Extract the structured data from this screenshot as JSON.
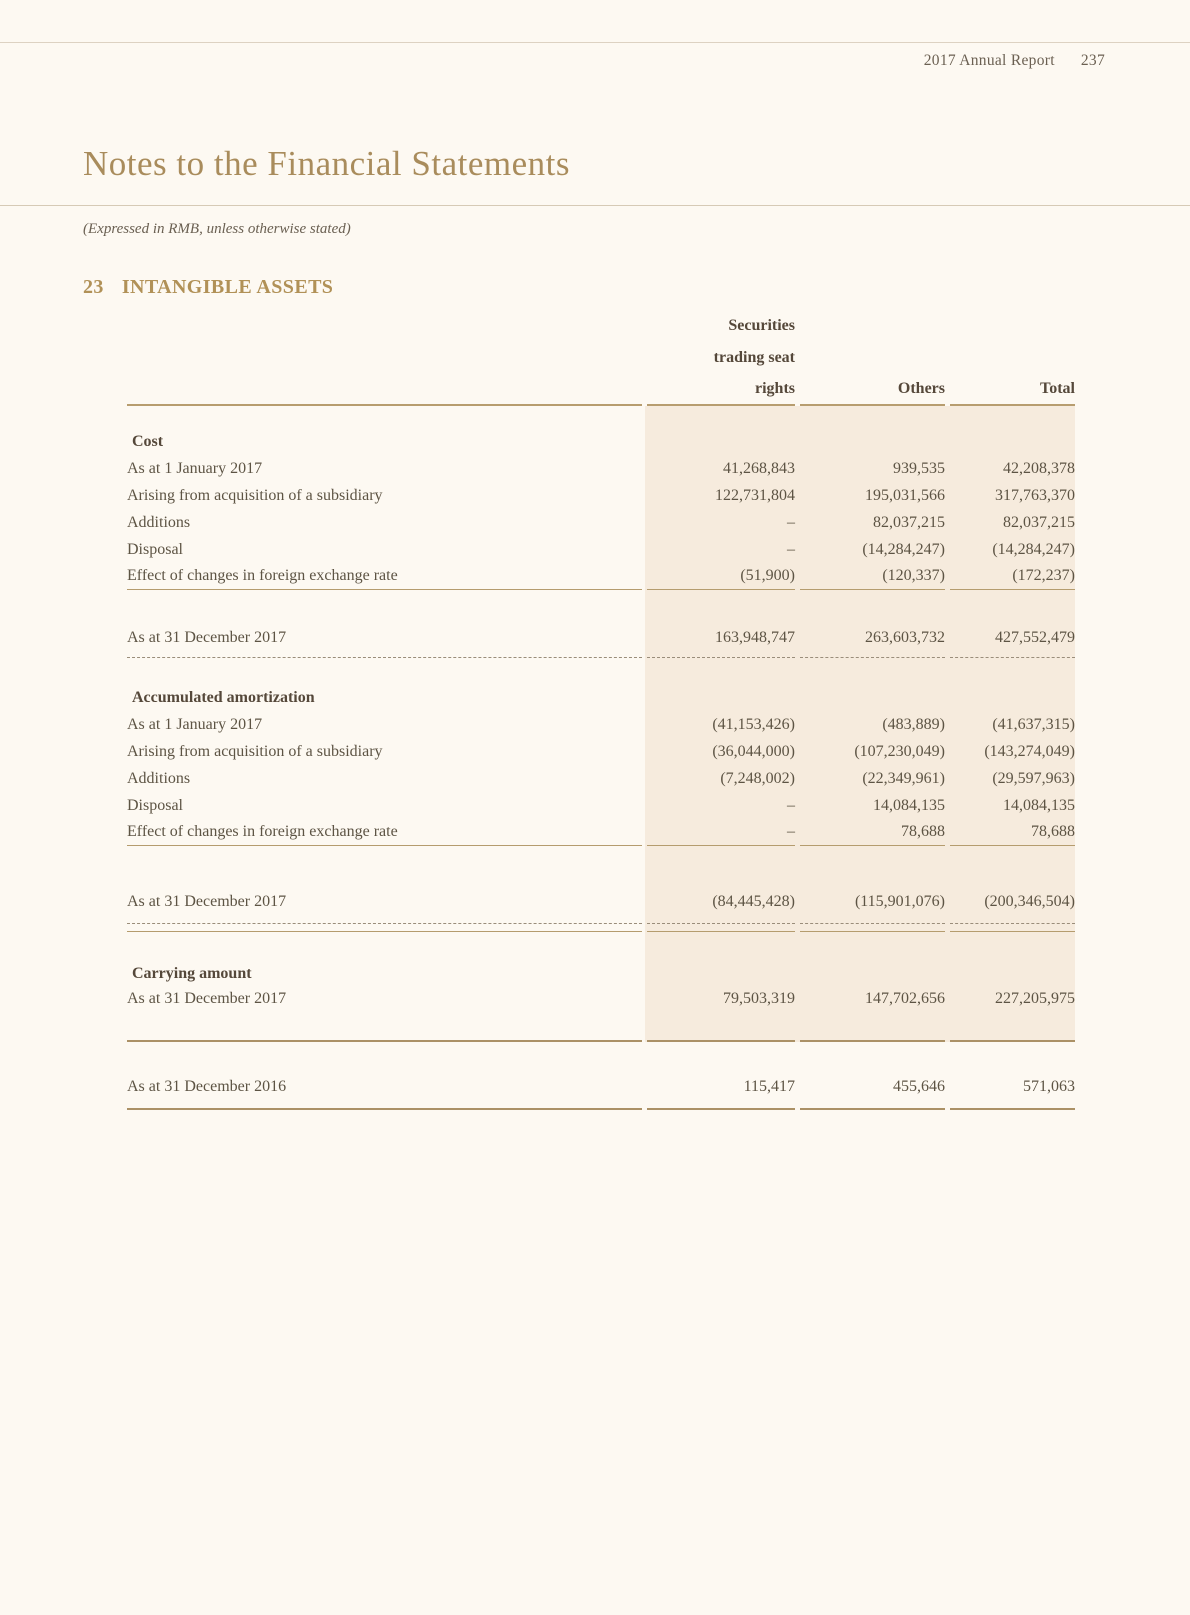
{
  "header": {
    "report_name": "2017 Annual Report",
    "page_number": "237"
  },
  "title": "Notes to the Financial Statements",
  "subtitle": "(Expressed in RMB, unless otherwise stated)",
  "section": {
    "number": "23",
    "title": "INTANGIBLE ASSETS"
  },
  "table": {
    "header": {
      "rights_lines": [
        "Securities",
        "trading seat",
        "rights"
      ],
      "others": "Others",
      "total": "Total"
    },
    "cost": {
      "label": "Cost",
      "rows": [
        {
          "label": "As at 1 January 2017",
          "rights": "41,268,843",
          "others": "939,535",
          "total": "42,208,378"
        },
        {
          "label": "Arising from acquisition of a subsidiary",
          "rights": "122,731,804",
          "others": "195,031,566",
          "total": "317,763,370"
        },
        {
          "label": "Additions",
          "rights": "–",
          "others": "82,037,215",
          "total": "82,037,215"
        },
        {
          "label": "Disposal",
          "rights": "–",
          "others": "(14,284,247)",
          "total": "(14,284,247)"
        },
        {
          "label": "Effect of changes in foreign exchange rate",
          "rights": "(51,900)",
          "others": "(120,337)",
          "total": "(172,237)"
        }
      ],
      "total_row": {
        "label": "As at 31 December 2017",
        "rights": "163,948,747",
        "others": "263,603,732",
        "total": "427,552,479"
      }
    },
    "amortization": {
      "label": "Accumulated amortization",
      "rows": [
        {
          "label": "As at 1 January 2017",
          "rights": "(41,153,426)",
          "others": "(483,889)",
          "total": "(41,637,315)"
        },
        {
          "label": "Arising from acquisition of a subsidiary",
          "rights": "(36,044,000)",
          "others": "(107,230,049)",
          "total": "(143,274,049)"
        },
        {
          "label": "Additions",
          "rights": "(7,248,002)",
          "others": "(22,349,961)",
          "total": "(29,597,963)"
        },
        {
          "label": "Disposal",
          "rights": "–",
          "others": "14,084,135",
          "total": "14,084,135"
        },
        {
          "label": "Effect of changes in foreign exchange rate",
          "rights": "–",
          "others": "78,688",
          "total": "78,688"
        }
      ],
      "total_row": {
        "label": "As at 31 December 2017",
        "rights": "(84,445,428)",
        "others": "(115,901,076)",
        "total": "(200,346,504)"
      }
    },
    "carrying": {
      "label": "Carrying amount",
      "row_2017": {
        "label": "As at 31 December 2017",
        "rights": "79,503,319",
        "others": "147,702,656",
        "total": "227,205,975"
      },
      "row_2016": {
        "label": "As at 31 December 2016",
        "rights": "115,417",
        "others": "455,646",
        "total": "571,063"
      }
    }
  },
  "colors": {
    "page_bg": "#fdf9f2",
    "column_shade_bg": "#f6ebdd",
    "rule_gold": "#b59c6e",
    "title_accent": "#a98c5c",
    "heading_accent": "#b19157",
    "body_text": "#5d5444",
    "dashed_rule": "#9a8d7a"
  }
}
